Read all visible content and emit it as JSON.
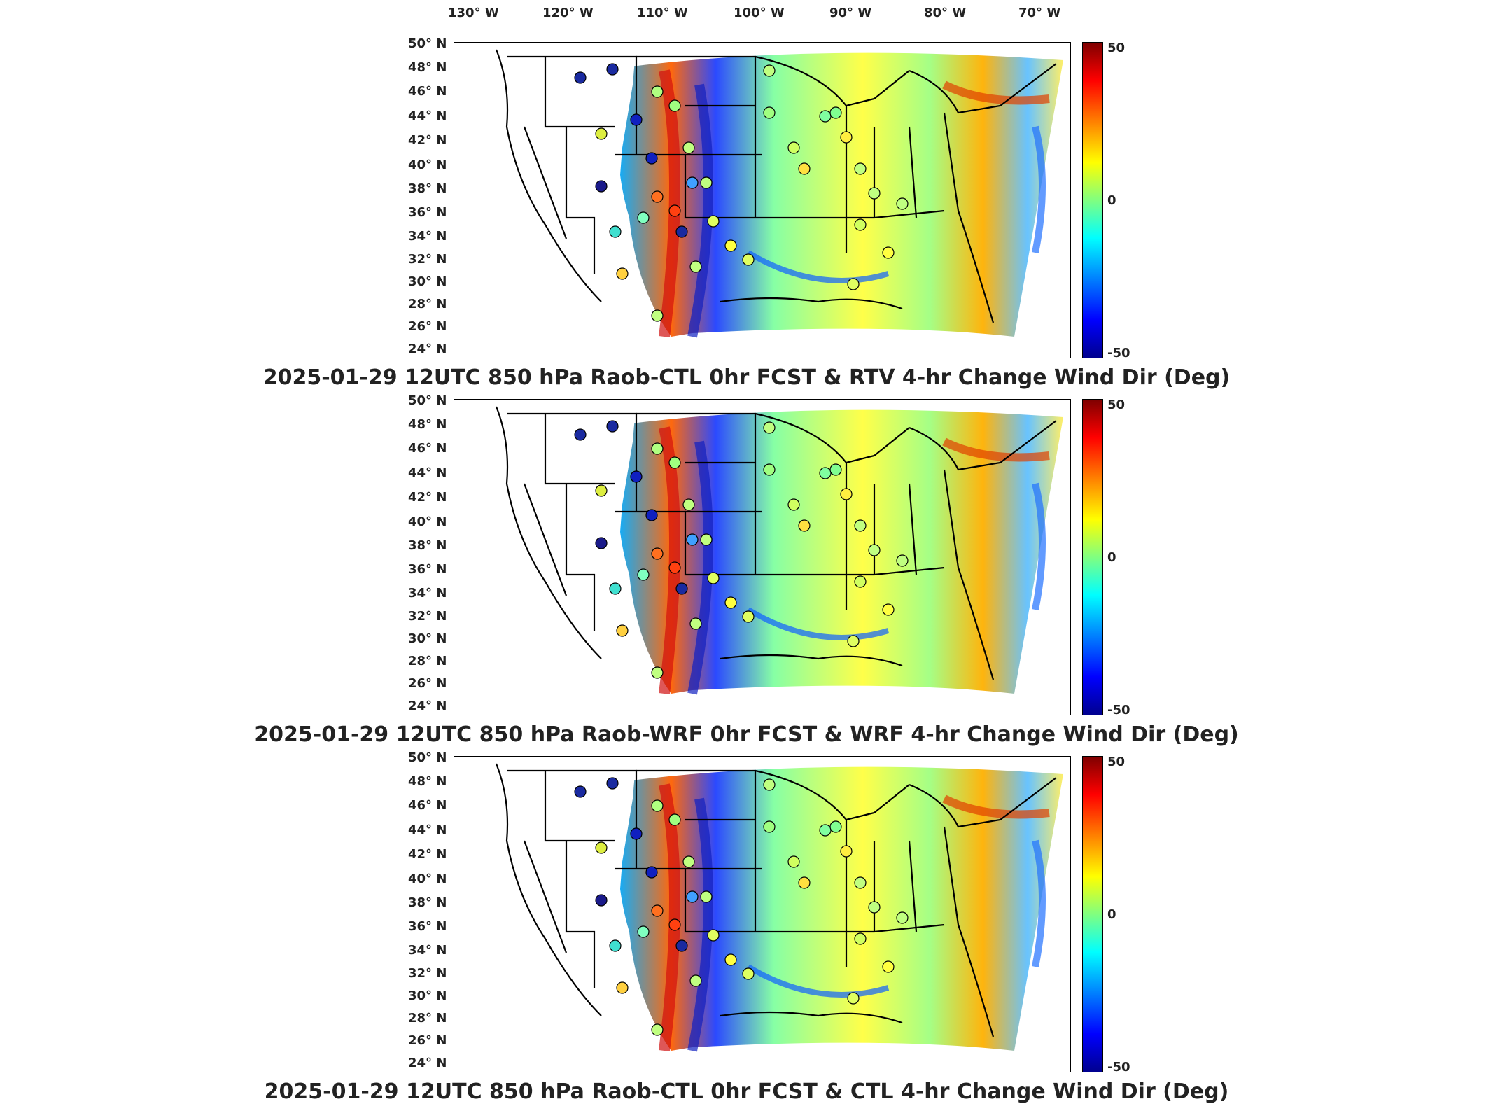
{
  "longitude_labels": [
    "130° W",
    "120° W",
    "110° W",
    "100° W",
    "90° W",
    "80° W",
    "70° W"
  ],
  "latitude_labels": [
    "50° N",
    "48° N",
    "46° N",
    "44° N",
    "42° N",
    "40° N",
    "38° N",
    "36° N",
    "34° N",
    "32° N",
    "30° N",
    "28° N",
    "26° N",
    "24° N"
  ],
  "colorbar_ticks": {
    "max": "50",
    "mid": "0",
    "min": "-50"
  },
  "colormap": [
    "#7f0000",
    "#ff0000",
    "#ff8000",
    "#ffff00",
    "#80ff80",
    "#00ffff",
    "#0080ff",
    "#0000ff",
    "#00008f"
  ],
  "panels": [
    {
      "title": "2025-01-29 12UTC 850 hPa Raob-CTL 0hr FCST & RTV 4-hr Change Wind Dir (Deg)"
    },
    {
      "title": "2025-01-29 12UTC 850 hPa Raob-WRF 0hr FCST & WRF 4-hr Change Wind Dir (Deg)"
    },
    {
      "title": "2025-01-29 12UTC 850 hPa Raob-CTL 0hr FCST & CTL 4-hr Change Wind Dir (Deg)"
    }
  ]
}
